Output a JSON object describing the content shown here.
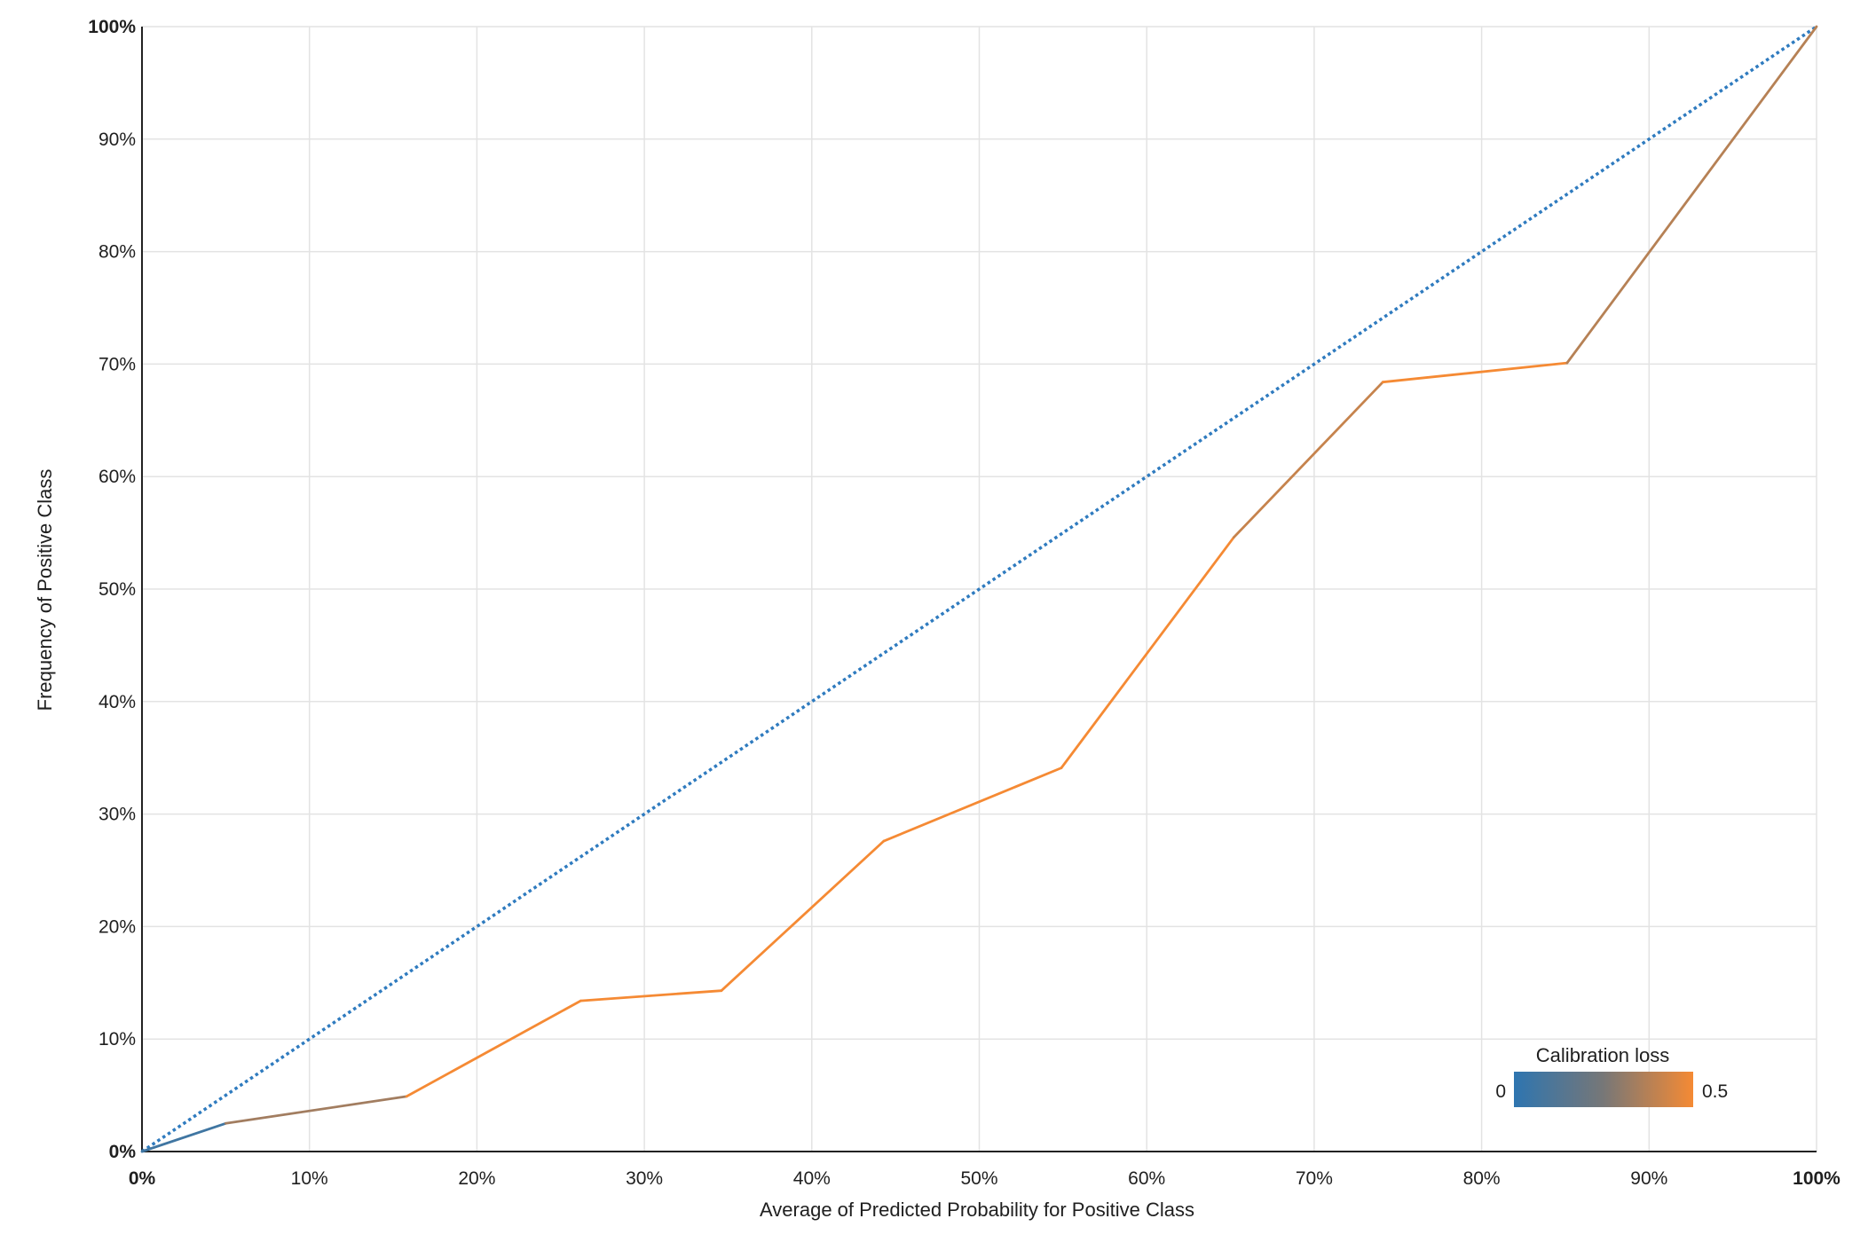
{
  "chart_data": {
    "type": "line",
    "xlabel": "Average of Predicted Probability for Positive Class",
    "ylabel": "Frequency of Positive Class",
    "xlim": [
      0,
      1
    ],
    "ylim": [
      0,
      1
    ],
    "x_ticks": [
      "0%",
      "10%",
      "20%",
      "30%",
      "40%",
      "50%",
      "60%",
      "70%",
      "80%",
      "90%",
      "100%"
    ],
    "y_ticks": [
      "0%",
      "10%",
      "20%",
      "30%",
      "40%",
      "50%",
      "60%",
      "70%",
      "80%",
      "90%",
      "100%"
    ],
    "grid": true,
    "series": [
      {
        "style": "dotted",
        "color": "#2f7bbf",
        "points": [
          [
            0,
            0
          ],
          [
            1,
            1
          ]
        ]
      },
      {
        "style": "solid",
        "color_by": "calibration_loss",
        "points": [
          [
            0.0,
            0.0
          ],
          [
            0.05,
            0.025
          ],
          [
            0.158,
            0.049
          ],
          [
            0.262,
            0.134
          ],
          [
            0.346,
            0.143
          ],
          [
            0.443,
            0.276
          ],
          [
            0.549,
            0.341
          ],
          [
            0.652,
            0.546
          ],
          [
            0.741,
            0.684
          ],
          [
            0.851,
            0.701
          ],
          [
            1.0,
            1.0
          ]
        ]
      }
    ],
    "legend": {
      "title": "Calibration loss",
      "min_label": "0",
      "max_label": "0.5",
      "min": 0,
      "max": 0.5,
      "color_low": "#2e75b0",
      "color_mid": "#777777",
      "color_high": "#f58a34",
      "position": "bottom-right"
    }
  }
}
